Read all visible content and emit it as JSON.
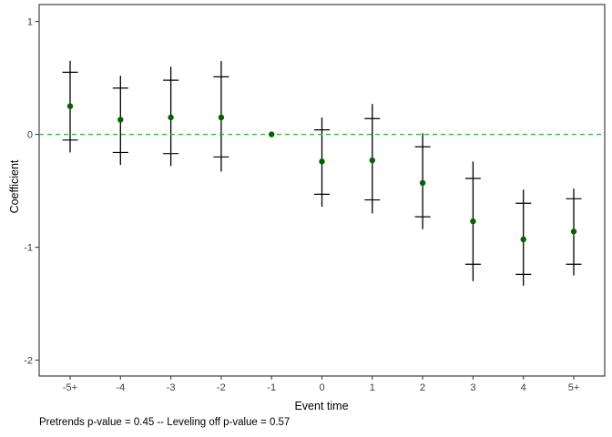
{
  "chart_data": {
    "type": "scatter",
    "subtype": "event-study-errorbar",
    "title": "",
    "xlabel": "Event time",
    "ylabel": "Coefficient",
    "caption": "Pretrends p-value = 0.45 -- Leveling off p-value = 0.57",
    "categories": [
      "-5+",
      "-4",
      "-3",
      "-2",
      "-1",
      "0",
      "1",
      "2",
      "3",
      "4",
      "5+"
    ],
    "yticks": [
      1,
      0,
      -1,
      -2
    ],
    "ylim": [
      -2.14,
      1.15
    ],
    "grid": false,
    "legend": false,
    "zero_line": {
      "y": 0,
      "style": "dashed",
      "color": "#00CD00"
    },
    "point_color": "#006400",
    "errorbar_color": "#000000",
    "border_color": "#404040",
    "tick_label_color": "#3c3c3c",
    "series": [
      {
        "name": "coefficient",
        "points": [
          {
            "x": "-5+",
            "estimate": 0.25,
            "inner_ci": [
              -0.05,
              0.55
            ],
            "outer_ci": [
              -0.16,
              0.65
            ],
            "reference": false
          },
          {
            "x": "-4",
            "estimate": 0.13,
            "inner_ci": [
              -0.16,
              0.41
            ],
            "outer_ci": [
              -0.27,
              0.52
            ],
            "reference": false
          },
          {
            "x": "-3",
            "estimate": 0.15,
            "inner_ci": [
              -0.17,
              0.48
            ],
            "outer_ci": [
              -0.28,
              0.6
            ],
            "reference": false
          },
          {
            "x": "-2",
            "estimate": 0.15,
            "inner_ci": [
              -0.2,
              0.51
            ],
            "outer_ci": [
              -0.33,
              0.65
            ],
            "reference": false
          },
          {
            "x": "-1",
            "estimate": 0.0,
            "inner_ci": null,
            "outer_ci": null,
            "reference": true
          },
          {
            "x": "0",
            "estimate": -0.24,
            "inner_ci": [
              -0.53,
              0.04
            ],
            "outer_ci": [
              -0.64,
              0.15
            ],
            "reference": false
          },
          {
            "x": "1",
            "estimate": -0.23,
            "inner_ci": [
              -0.58,
              0.14
            ],
            "outer_ci": [
              -0.7,
              0.27
            ],
            "reference": false
          },
          {
            "x": "2",
            "estimate": -0.43,
            "inner_ci": [
              -0.73,
              -0.11
            ],
            "outer_ci": [
              -0.84,
              0.01
            ],
            "reference": false
          },
          {
            "x": "3",
            "estimate": -0.77,
            "inner_ci": [
              -1.15,
              -0.39
            ],
            "outer_ci": [
              -1.3,
              -0.24
            ],
            "reference": false
          },
          {
            "x": "4",
            "estimate": -0.93,
            "inner_ci": [
              -1.24,
              -0.61
            ],
            "outer_ci": [
              -1.34,
              -0.49
            ],
            "reference": false
          },
          {
            "x": "5+",
            "estimate": -0.86,
            "inner_ci": [
              -1.15,
              -0.57
            ],
            "outer_ci": [
              -1.25,
              -0.48
            ],
            "reference": false
          }
        ]
      }
    ]
  }
}
